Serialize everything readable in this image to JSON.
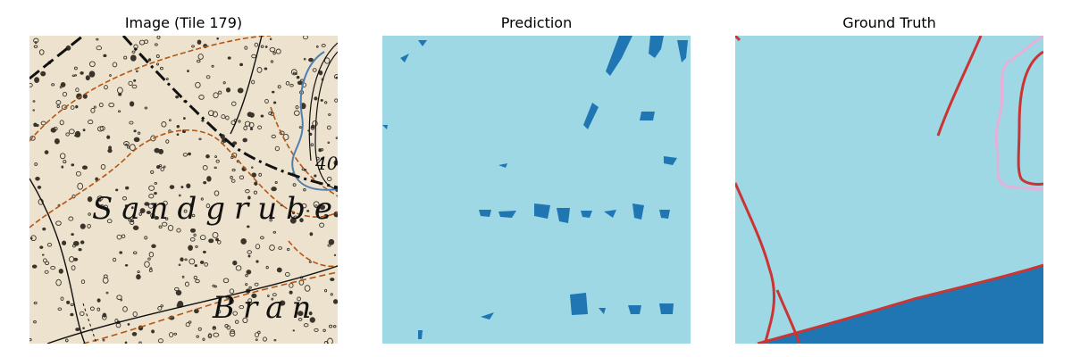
{
  "figure": {
    "panels": [
      {
        "title": "Image (Tile 179)"
      },
      {
        "title": "Prediction"
      },
      {
        "title": "Ground Truth"
      }
    ],
    "map_labels": [
      "Sandgrube",
      "Bran",
      "40"
    ]
  },
  "colors": {
    "paper": "#ece2cd",
    "background_class": "#9ed8e4",
    "feature_class": "#1f76b3",
    "boundary_red": "#cc3333",
    "boundary_pink": "#e7b0d8",
    "contour_orange": "#b35614",
    "stream_blue": "#4f7fb0"
  }
}
